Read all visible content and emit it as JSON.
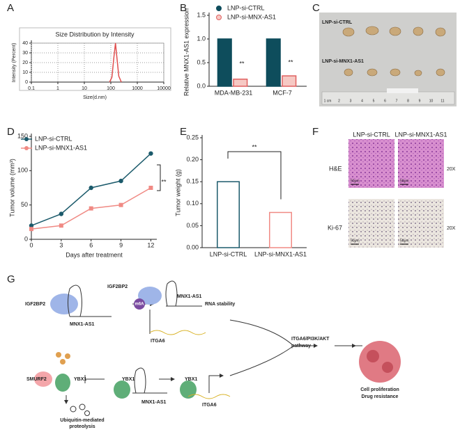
{
  "panel_labels": [
    "A",
    "B",
    "C",
    "D",
    "E",
    "F",
    "G"
  ],
  "chart_data": [
    {
      "type": "line",
      "title": "Size Distribution by Intensity",
      "x_label": "Size(d.nm)",
      "y_label": "Intensity (Percent)",
      "log_x": true,
      "grid": true,
      "framed": true,
      "xlim": [
        0.1,
        10000
      ],
      "xticks": [
        0.1,
        1,
        10,
        100,
        1000,
        10000
      ],
      "ylim": [
        0,
        40
      ],
      "yticks": [
        0,
        10,
        20,
        30,
        40
      ],
      "series": [
        {
          "color": "#e05050",
          "x": [
            90,
            110,
            130,
            150,
            170,
            200,
            250
          ],
          "values": [
            0,
            5,
            25,
            40,
            25,
            6,
            0
          ]
        }
      ]
    },
    {
      "type": "bar",
      "y_label": "Relative MNX1-AS1 expression",
      "legend": "upper right",
      "categories": [
        "MDA-MB-231",
        "MCF-7"
      ],
      "ylim": [
        0,
        1.5
      ],
      "yticks": [
        {
          "value": 0,
          "label": "0.0"
        },
        {
          "value": 0.5,
          "label": "0.5"
        },
        {
          "value": 1,
          "label": "1.0"
        },
        {
          "value": 1.5,
          "label": "1.5"
        }
      ],
      "series": [
        {
          "name": "LNP-si-CTRL",
          "color": "#0e4d5c",
          "fill": "#0e4d5c",
          "values": [
            1,
            1
          ]
        },
        {
          "name": "LNP-si-MNX-AS1",
          "color": "#e06060",
          "fill": "#f6c9c4",
          "values": [
            0.15,
            0.22
          ]
        }
      ],
      "annotations": [
        "**",
        "**"
      ]
    },
    {
      "type": "line",
      "x_label": "Days after treatment",
      "y_label": "Tumor volume (mm³)",
      "legend": "upper left",
      "xlim": [
        0,
        12.6
      ],
      "xticks": [
        0,
        3,
        6,
        9,
        12
      ],
      "ylim": [
        0,
        150
      ],
      "yticks": [
        0,
        50,
        100,
        150
      ],
      "series": [
        {
          "name": "LNP-si-CTRL",
          "color": "#1b5a6b",
          "marker": "circle",
          "x": [
            0,
            3,
            6,
            9,
            12
          ],
          "values": [
            20,
            37,
            75,
            85,
            125
          ]
        },
        {
          "name": "LNP-si-MNX1-AS1",
          "color": "#f08a84",
          "marker": "square",
          "x": [
            0,
            3,
            6,
            9,
            12
          ],
          "values": [
            15,
            20,
            45,
            50,
            75
          ]
        }
      ],
      "annotations": [
        "**"
      ]
    },
    {
      "type": "bar",
      "y_label": "Tumor weight (g)",
      "categories": [
        "LNP-si-CTRL",
        "LNP-si-MNX1-AS1"
      ],
      "ylim": [
        0,
        0.25
      ],
      "yticks": [
        {
          "value": 0,
          "label": "0.00"
        },
        {
          "value": 0.05,
          "label": "0.05"
        },
        {
          "value": 0.1,
          "label": "0.10"
        },
        {
          "value": 0.15,
          "label": "0.15"
        },
        {
          "value": 0.2,
          "label": "0.20"
        },
        {
          "value": 0.25,
          "label": "0.25"
        }
      ],
      "series": [
        {
          "colors": [
            "#1b5a6b",
            "#f08a84"
          ],
          "fill": "#ffffff",
          "values": [
            0.15,
            0.08
          ]
        }
      ],
      "annotations": [
        "**"
      ]
    }
  ],
  "photo_c": {
    "labels": [
      "LNP-si-CTRL",
      "LNP-si-MNX1-AS1"
    ],
    "ruler": [
      "1 cm",
      "2",
      "3",
      "4",
      "5",
      "6",
      "7",
      "8",
      "9",
      "10",
      "11"
    ]
  },
  "histology_f": {
    "columns": [
      "LNP-si-CTRL",
      "LNP-si-MNX1-AS1"
    ],
    "rows": [
      "H&E",
      "Ki-67"
    ],
    "magnification": [
      "20X",
      "20X"
    ],
    "scale_bars": [
      "50μm",
      "50μm",
      "50μm",
      "50μm"
    ]
  },
  "diagram_g": {
    "nodes": [
      "IGF2BP2",
      "MNX1-AS1",
      "IGF2BP2",
      "MNX1-AS1",
      "m6A",
      "RNA stability",
      "ITGA6",
      "ITGA6/PI3K/AKT",
      "pathway",
      "Cell proliferation",
      "Drug resistance",
      "SMURF2",
      "YBX1",
      "YBX1",
      "MNX1-AS1",
      "YBX1",
      "ITGA6",
      "Ubiquitin-mediated",
      "proteolysis"
    ]
  }
}
